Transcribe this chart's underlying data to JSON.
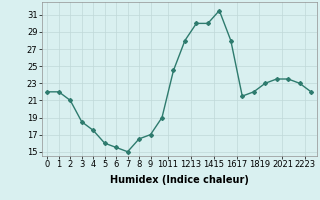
{
  "x": [
    0,
    1,
    2,
    3,
    4,
    5,
    6,
    7,
    8,
    9,
    10,
    11,
    12,
    13,
    14,
    15,
    16,
    17,
    18,
    19,
    20,
    21,
    22,
    23
  ],
  "y": [
    22.0,
    22.0,
    21.0,
    18.5,
    17.5,
    16.0,
    15.5,
    15.0,
    16.5,
    17.0,
    19.0,
    24.5,
    28.0,
    30.0,
    30.0,
    31.5,
    28.0,
    21.5,
    22.0,
    23.0,
    23.5,
    23.5,
    23.0,
    22.0
  ],
  "line_color": "#2e7b6e",
  "marker": "D",
  "marker_size": 2.0,
  "bg_color": "#d9f0f0",
  "grid_color": "#c0d8d8",
  "xlabel": "Humidex (Indice chaleur)",
  "yticks": [
    15,
    17,
    19,
    21,
    23,
    25,
    27,
    29,
    31
  ],
  "xtick_labels": [
    "0",
    "1",
    "2",
    "3",
    "4",
    "5",
    "6",
    "7",
    "8",
    "9",
    "1011",
    "1213",
    "1415",
    "1617",
    "1819",
    "2021",
    "2223"
  ],
  "xtick_positions": [
    0,
    1,
    2,
    3,
    4,
    5,
    6,
    7,
    8,
    9,
    10.5,
    12.5,
    14.5,
    16.5,
    18.5,
    20.5,
    22.5
  ],
  "ylim": [
    14.5,
    32.5
  ],
  "xlim": [
    -0.5,
    23.5
  ],
  "xlabel_fontsize": 7,
  "tick_fontsize": 6,
  "line_width": 1.0
}
